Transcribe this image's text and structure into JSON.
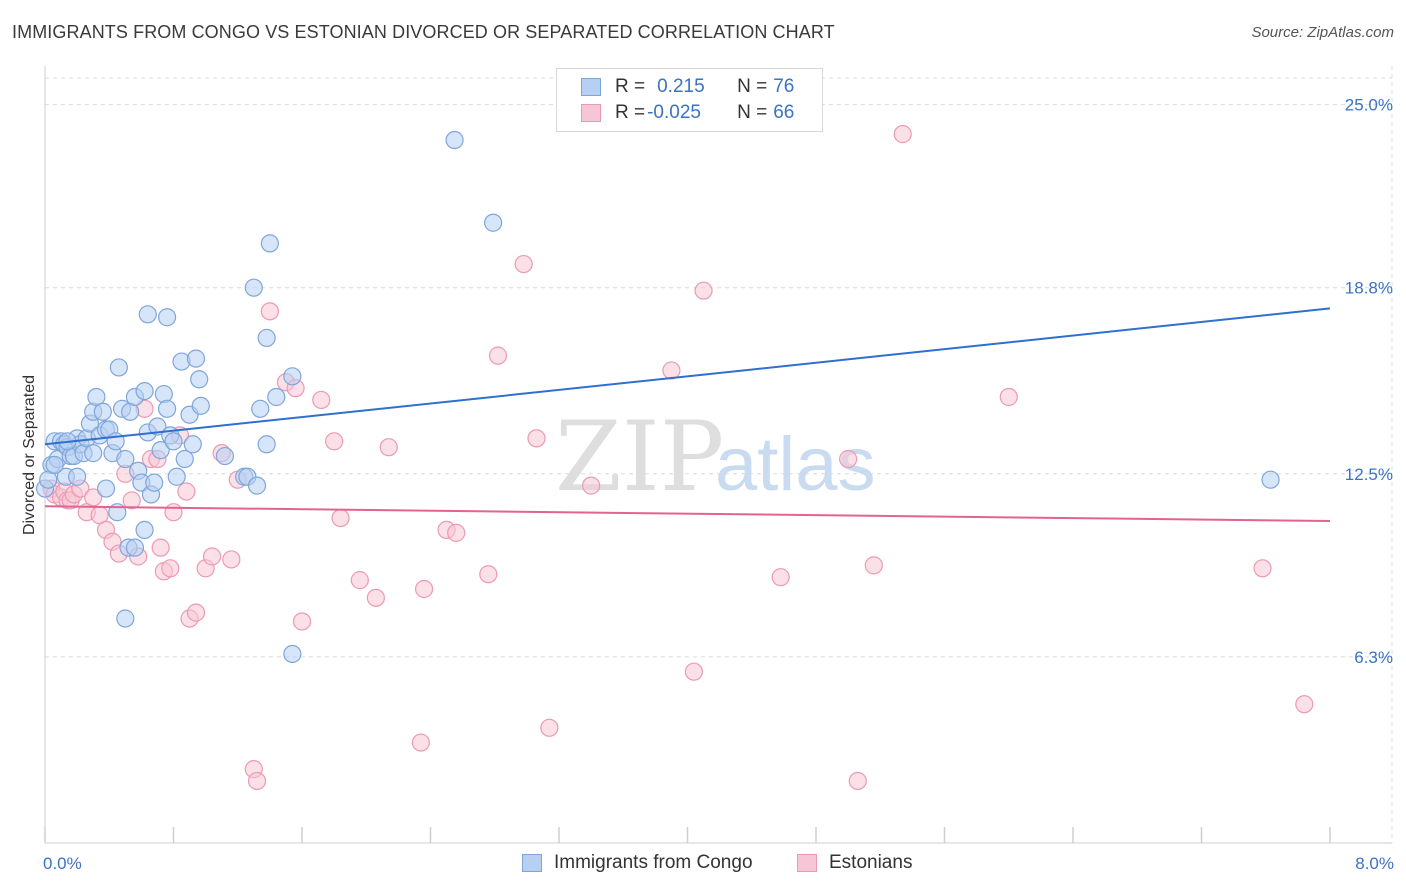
{
  "title": "IMMIGRANTS FROM CONGO VS ESTONIAN DIVORCED OR SEPARATED CORRELATION CHART",
  "source": "Source: ZipAtlas.com",
  "watermark": {
    "zip": "ZIP",
    "atlas": "atlas"
  },
  "legend_box": {
    "rows": [
      {
        "r_label": "R = ",
        "r_value": "0.215",
        "n_label": "N = ",
        "n_value": "76"
      },
      {
        "r_label": "R = ",
        "r_value": "-0.025",
        "n_label": "N = ",
        "n_value": "66"
      }
    ]
  },
  "bottom_legend": [
    "Immigrants from Congo",
    "Estonians"
  ],
  "colors": {
    "blue_fill": "#b6d0f2",
    "blue_stroke": "#7fa6db",
    "blue_line": "#2e6fcf",
    "pink_fill": "#f7c6d6",
    "pink_stroke": "#eb9ab4",
    "pink_line": "#e2638e",
    "grid": "#dcdcdc",
    "tick_text": "#3b72c4"
  },
  "chart_data": {
    "type": "scatter",
    "title": "IMMIGRANTS FROM CONGO VS ESTONIAN DIVORCED OR SEPARATED CORRELATION CHART",
    "xlabel": "",
    "ylabel": "Divorced or Separated",
    "xlim": [
      0,
      8
    ],
    "ylim": [
      0,
      25.9
    ],
    "x_tick_labels": [
      "0.0%",
      "8.0%"
    ],
    "y_ticks": [
      6.3,
      12.5,
      18.8,
      25.0
    ],
    "y_tick_labels": [
      "6.3%",
      "12.5%",
      "18.8%",
      "25.0%"
    ],
    "grid": true,
    "legend_position": "top-center",
    "series": [
      {
        "name": "Immigrants from Congo",
        "r": 0.215,
        "n": 76,
        "trend": [
          [
            0.0,
            13.5
          ],
          [
            8.0,
            18.1
          ]
        ],
        "points": [
          [
            0.04,
            12.8
          ],
          [
            0.06,
            13.6
          ],
          [
            0.08,
            13.0
          ],
          [
            0.1,
            13.6
          ],
          [
            0.12,
            13.5
          ],
          [
            0.14,
            13.4
          ],
          [
            0.16,
            13.1
          ],
          [
            0.18,
            13.1
          ],
          [
            0.2,
            13.7
          ],
          [
            0.22,
            13.5
          ],
          [
            0.24,
            13.2
          ],
          [
            0.26,
            13.7
          ],
          [
            0.28,
            14.2
          ],
          [
            0.3,
            14.6
          ],
          [
            0.32,
            15.1
          ],
          [
            0.34,
            13.8
          ],
          [
            0.36,
            14.6
          ],
          [
            0.38,
            14.0
          ],
          [
            0.4,
            14.0
          ],
          [
            0.42,
            13.2
          ],
          [
            0.44,
            13.6
          ],
          [
            0.46,
            16.1
          ],
          [
            0.48,
            14.7
          ],
          [
            0.5,
            13.0
          ],
          [
            0.53,
            14.6
          ],
          [
            0.56,
            15.1
          ],
          [
            0.58,
            12.6
          ],
          [
            0.6,
            12.2
          ],
          [
            0.62,
            15.3
          ],
          [
            0.64,
            13.9
          ],
          [
            0.66,
            11.8
          ],
          [
            0.68,
            12.2
          ],
          [
            0.7,
            14.1
          ],
          [
            0.72,
            13.3
          ],
          [
            0.74,
            15.2
          ],
          [
            0.76,
            14.7
          ],
          [
            0.78,
            13.8
          ],
          [
            0.8,
            13.6
          ],
          [
            0.82,
            12.4
          ],
          [
            0.85,
            16.3
          ],
          [
            0.87,
            13.0
          ],
          [
            0.9,
            14.5
          ],
          [
            0.92,
            13.5
          ],
          [
            0.94,
            16.4
          ],
          [
            0.96,
            15.7
          ],
          [
            0.97,
            14.8
          ],
          [
            0.64,
            17.9
          ],
          [
            0.76,
            17.8
          ],
          [
            0.13,
            12.4
          ],
          [
            0.2,
            12.4
          ],
          [
            0.38,
            12.0
          ],
          [
            0.45,
            11.2
          ],
          [
            0.62,
            10.6
          ],
          [
            0.52,
            10.0
          ],
          [
            0.56,
            10.0
          ],
          [
            0.5,
            7.6
          ],
          [
            1.12,
            13.1
          ],
          [
            1.24,
            12.4
          ],
          [
            1.26,
            12.4
          ],
          [
            1.32,
            12.1
          ],
          [
            1.34,
            14.7
          ],
          [
            1.38,
            13.5
          ],
          [
            1.38,
            17.1
          ],
          [
            1.44,
            15.1
          ],
          [
            1.54,
            15.8
          ],
          [
            1.3,
            18.8
          ],
          [
            1.4,
            20.3
          ],
          [
            1.54,
            6.4
          ],
          [
            2.55,
            23.8
          ],
          [
            2.79,
            21.0
          ],
          [
            7.63,
            12.3
          ],
          [
            0.0,
            12.0
          ],
          [
            0.02,
            12.3
          ],
          [
            0.06,
            12.8
          ],
          [
            0.14,
            13.6
          ],
          [
            0.3,
            13.2
          ]
        ]
      },
      {
        "name": "Estonians",
        "r": -0.025,
        "n": 66,
        "trend": [
          [
            0.0,
            11.4
          ],
          [
            8.0,
            10.9
          ]
        ],
        "points": [
          [
            0.04,
            12.0
          ],
          [
            0.06,
            11.8
          ],
          [
            0.1,
            11.7
          ],
          [
            0.12,
            11.9
          ],
          [
            0.14,
            11.6
          ],
          [
            0.16,
            11.6
          ],
          [
            0.18,
            11.8
          ],
          [
            0.22,
            12.0
          ],
          [
            0.26,
            11.2
          ],
          [
            0.3,
            11.7
          ],
          [
            0.34,
            11.1
          ],
          [
            0.38,
            10.6
          ],
          [
            0.42,
            10.2
          ],
          [
            0.46,
            9.8
          ],
          [
            0.5,
            12.5
          ],
          [
            0.54,
            11.6
          ],
          [
            0.58,
            9.7
          ],
          [
            0.62,
            14.7
          ],
          [
            0.66,
            13.0
          ],
          [
            0.7,
            13.0
          ],
          [
            0.72,
            10.0
          ],
          [
            0.74,
            9.2
          ],
          [
            0.78,
            9.3
          ],
          [
            0.8,
            11.2
          ],
          [
            0.84,
            13.8
          ],
          [
            0.88,
            11.9
          ],
          [
            0.9,
            7.6
          ],
          [
            0.94,
            7.8
          ],
          [
            1.0,
            9.3
          ],
          [
            1.04,
            9.7
          ],
          [
            1.1,
            13.2
          ],
          [
            1.2,
            12.3
          ],
          [
            1.4,
            18.0
          ],
          [
            1.5,
            15.6
          ],
          [
            1.56,
            15.4
          ],
          [
            1.72,
            15.0
          ],
          [
            1.8,
            13.6
          ],
          [
            1.84,
            11.0
          ],
          [
            1.96,
            8.9
          ],
          [
            2.06,
            8.3
          ],
          [
            2.14,
            13.4
          ],
          [
            2.36,
            8.6
          ],
          [
            2.5,
            10.6
          ],
          [
            2.56,
            10.5
          ],
          [
            2.76,
            9.1
          ],
          [
            2.82,
            16.5
          ],
          [
            2.98,
            19.6
          ],
          [
            3.06,
            13.7
          ],
          [
            3.4,
            12.1
          ],
          [
            3.9,
            16.0
          ],
          [
            4.1,
            18.7
          ],
          [
            4.04,
            5.8
          ],
          [
            4.58,
            9.0
          ],
          [
            5.0,
            13.0
          ],
          [
            5.06,
            2.1
          ],
          [
            5.16,
            9.4
          ],
          [
            5.34,
            24.0
          ],
          [
            6.0,
            15.1
          ],
          [
            7.58,
            9.3
          ],
          [
            7.84,
            4.7
          ],
          [
            1.6,
            7.5
          ],
          [
            1.3,
            2.5
          ],
          [
            1.32,
            2.1
          ],
          [
            2.34,
            3.4
          ],
          [
            3.14,
            3.9
          ],
          [
            1.16,
            9.6
          ]
        ]
      }
    ]
  }
}
